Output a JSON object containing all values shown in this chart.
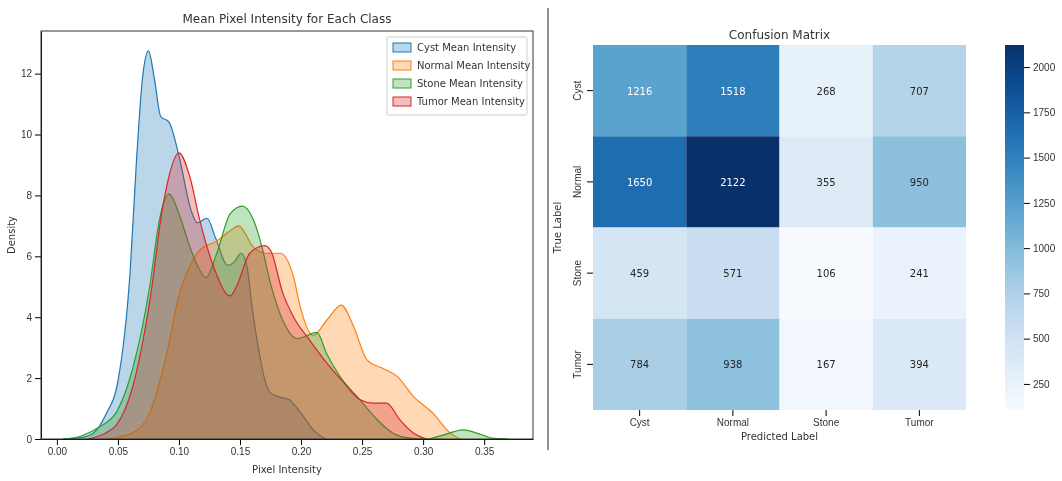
{
  "chart_data": [
    {
      "type": "area",
      "title": "Mean Pixel Intensity for Each Class",
      "xlabel": "Pixel Intensity",
      "ylabel": "Density",
      "xlim": [
        -0.013,
        0.39
      ],
      "ylim": [
        0,
        13.4
      ],
      "xticks": [
        {
          "value": 0,
          "label": "0.00"
        },
        0.05,
        {
          "value": 0.1,
          "label": "0.10"
        },
        0.15,
        {
          "value": 0.2,
          "label": "0.20"
        },
        0.25,
        {
          "value": 0.3,
          "label": "0.30"
        },
        0.35
      ],
      "yticks": [
        0,
        2,
        4,
        6,
        8,
        10,
        12
      ],
      "legend": "top right",
      "grid": false,
      "series": [
        {
          "name": "Cyst Mean Intensity",
          "color": "#1f77b4",
          "x": [
            0.005,
            0.02,
            0.03,
            0.04,
            0.05,
            0.06,
            0.065,
            0.07,
            0.075,
            0.08,
            0.085,
            0.092,
            0.1,
            0.11,
            0.115,
            0.123,
            0.13,
            0.14,
            0.145,
            0.151,
            0.156,
            0.16,
            0.165,
            0.17,
            0.175,
            0.185,
            0.19,
            0.195,
            0.2,
            0.21,
            0.22
          ],
          "values": [
            0,
            0.05,
            0.2,
            0.8,
            1.9,
            5.5,
            9,
            11.8,
            12.75,
            11.8,
            10.6,
            10.4,
            9.3,
            7.5,
            7.1,
            7.25,
            6.6,
            5.7,
            5.8,
            6.1,
            5.6,
            4.3,
            3,
            2,
            1.5,
            1.35,
            1.3,
            1.1,
            0.85,
            0.3,
            0
          ]
        },
        {
          "name": "Normal Mean Intensity",
          "color": "#ff7f0e",
          "x": [
            0.04,
            0.062,
            0.076,
            0.09,
            0.1,
            0.109,
            0.117,
            0.131,
            0.144,
            0.149,
            0.161,
            0.172,
            0.183,
            0.194,
            0.199,
            0.21,
            0.221,
            0.233,
            0.243,
            0.254,
            0.268,
            0.279,
            0.292,
            0.308,
            0.322,
            0.33
          ],
          "values": [
            0,
            0.2,
            0.85,
            2.8,
            4.7,
            5.7,
            6.2,
            6.5,
            6.9,
            7,
            6.3,
            6.1,
            6.1,
            5.3,
            4.4,
            3.4,
            3.9,
            4.4,
            3.7,
            2.6,
            2.3,
            2.05,
            1.4,
            0.85,
            0.2,
            0
          ]
        },
        {
          "name": "Stone Mean Intensity",
          "color": "#2ca02c",
          "x": [
            0.005,
            0.02,
            0.035,
            0.049,
            0.062,
            0.076,
            0.084,
            0.092,
            0.1,
            0.109,
            0.117,
            0.122,
            0.131,
            0.142,
            0.152,
            0.161,
            0.168,
            0.175,
            0.185,
            0.197,
            0.213,
            0.221,
            0.232,
            0.248,
            0.262,
            0.275,
            0.289,
            0.303,
            0.314,
            0.333,
            0.347,
            0.358,
            0.37
          ],
          "values": [
            0,
            0.1,
            0.4,
            0.9,
            2.3,
            5,
            7.2,
            8.05,
            7.4,
            6.3,
            5.55,
            5.3,
            6.1,
            7.4,
            7.65,
            7.2,
            6.3,
            5.1,
            3.9,
            3.3,
            3.5,
            2.8,
            2.05,
            1.3,
            0.65,
            0.2,
            0.03,
            0,
            0.1,
            0.3,
            0.15,
            0.02,
            0
          ]
        },
        {
          "name": "Tumor Mean Intensity",
          "color": "#d62728",
          "x": [
            0.025,
            0.04,
            0.049,
            0.062,
            0.076,
            0.087,
            0.1,
            0.109,
            0.117,
            0.128,
            0.142,
            0.147,
            0.158,
            0.17,
            0.175,
            0.185,
            0.194,
            0.207,
            0.221,
            0.235,
            0.248,
            0.259,
            0.27,
            0.281,
            0.292,
            0.303
          ],
          "values": [
            0,
            0.2,
            0.47,
            1.7,
            4.5,
            7.7,
            9.4,
            8.6,
            7.2,
            5.7,
            4.7,
            5,
            6.1,
            6.35,
            6.2,
            4.8,
            4,
            3.25,
            2.5,
            1.85,
            1.3,
            1.18,
            1.18,
            0.63,
            0.2,
            0
          ]
        }
      ]
    },
    {
      "type": "heatmap",
      "title": "Confusion Matrix",
      "xlabel": "Predicted Label",
      "ylabel": "True Label",
      "categories": [
        "Cyst",
        "Normal",
        "Stone",
        "Tumor"
      ],
      "y_categories": [
        "Cyst",
        "Normal",
        "Stone",
        "Tumor"
      ],
      "cells": [
        [
          1216,
          1518,
          268,
          707
        ],
        [
          1650,
          2122,
          355,
          950
        ],
        [
          459,
          571,
          106,
          241
        ],
        [
          784,
          938,
          167,
          394
        ]
      ],
      "data_labels": true,
      "clim": [
        106,
        2122
      ],
      "cticks": [
        250,
        500,
        750,
        1000,
        1250,
        1500,
        1750,
        2000
      ]
    }
  ]
}
